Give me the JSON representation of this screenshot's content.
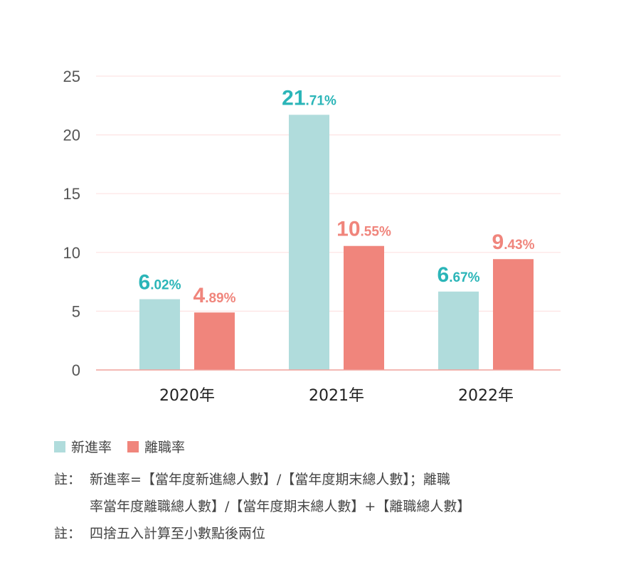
{
  "chart_data": {
    "type": "bar",
    "categories": [
      "2020年",
      "2021年",
      "2022年"
    ],
    "series": [
      {
        "name": "新進率",
        "values": [
          6.02,
          21.71,
          6.67
        ],
        "label_int": [
          "6",
          "21",
          "6"
        ],
        "label_dec": [
          ".02%",
          ".71%",
          ".67%"
        ],
        "color": "#b0dcdc",
        "label_color": "#2bb5b8"
      },
      {
        "name": "離職率",
        "values": [
          4.89,
          10.55,
          9.43
        ],
        "label_int": [
          "4",
          "10",
          "9"
        ],
        "label_dec": [
          ".89%",
          ".55%",
          ".43%"
        ],
        "color": "#f0857c",
        "label_color": "#f0857c"
      }
    ],
    "ylim": [
      0,
      25
    ],
    "yticks": [
      "0",
      "5",
      "10",
      "15",
      "20",
      "25"
    ],
    "grid": true,
    "legend_position": "bottom-left"
  },
  "notes": {
    "prefix": "註：",
    "note1_line1": "新進率=【當年度新進總人數】/【當年度期末總人數】；離職",
    "note1_line2": "率當年度離職總人數】/【當年度期末總人數】+【離職總人數】",
    "note2": "四捨五入計算至小數點後兩位"
  }
}
